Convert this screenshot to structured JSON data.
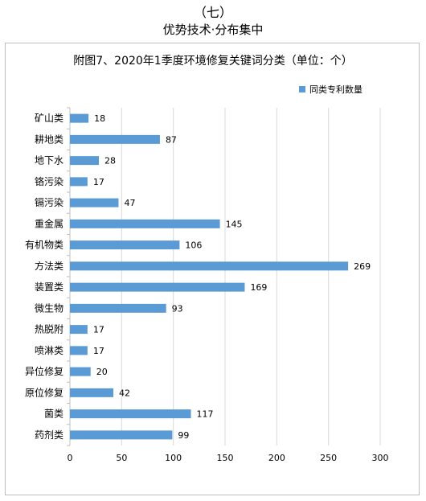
{
  "header": {
    "section_number": "（七）",
    "section_title": "优势技术·分布集中"
  },
  "colors": {
    "bar": "#5b9bd5",
    "grid": "#d9d9d9",
    "axis": "#bfbfbf"
  },
  "chart_data": {
    "type": "bar",
    "orientation": "horizontal",
    "title": "附图7、2020年1季度环境修复关键词分类（单位：个）",
    "legend_position": "top-right",
    "grid": true,
    "categories": [
      "矿山类",
      "耕地类",
      "地下水",
      "铬污染",
      "镉污染",
      "重金属",
      "有机物类",
      "方法类",
      "装置类",
      "微生物",
      "热脱附",
      "喷淋类",
      "异位修复",
      "原位修复",
      "菌类",
      "药剂类"
    ],
    "series": [
      {
        "name": "同类专利数量",
        "values": [
          18,
          87,
          28,
          17,
          47,
          145,
          106,
          269,
          169,
          93,
          17,
          17,
          20,
          42,
          117,
          99
        ]
      }
    ],
    "xlim": [
      0,
      300
    ],
    "xticks": [
      0,
      50,
      100,
      150,
      200,
      250,
      300
    ]
  }
}
